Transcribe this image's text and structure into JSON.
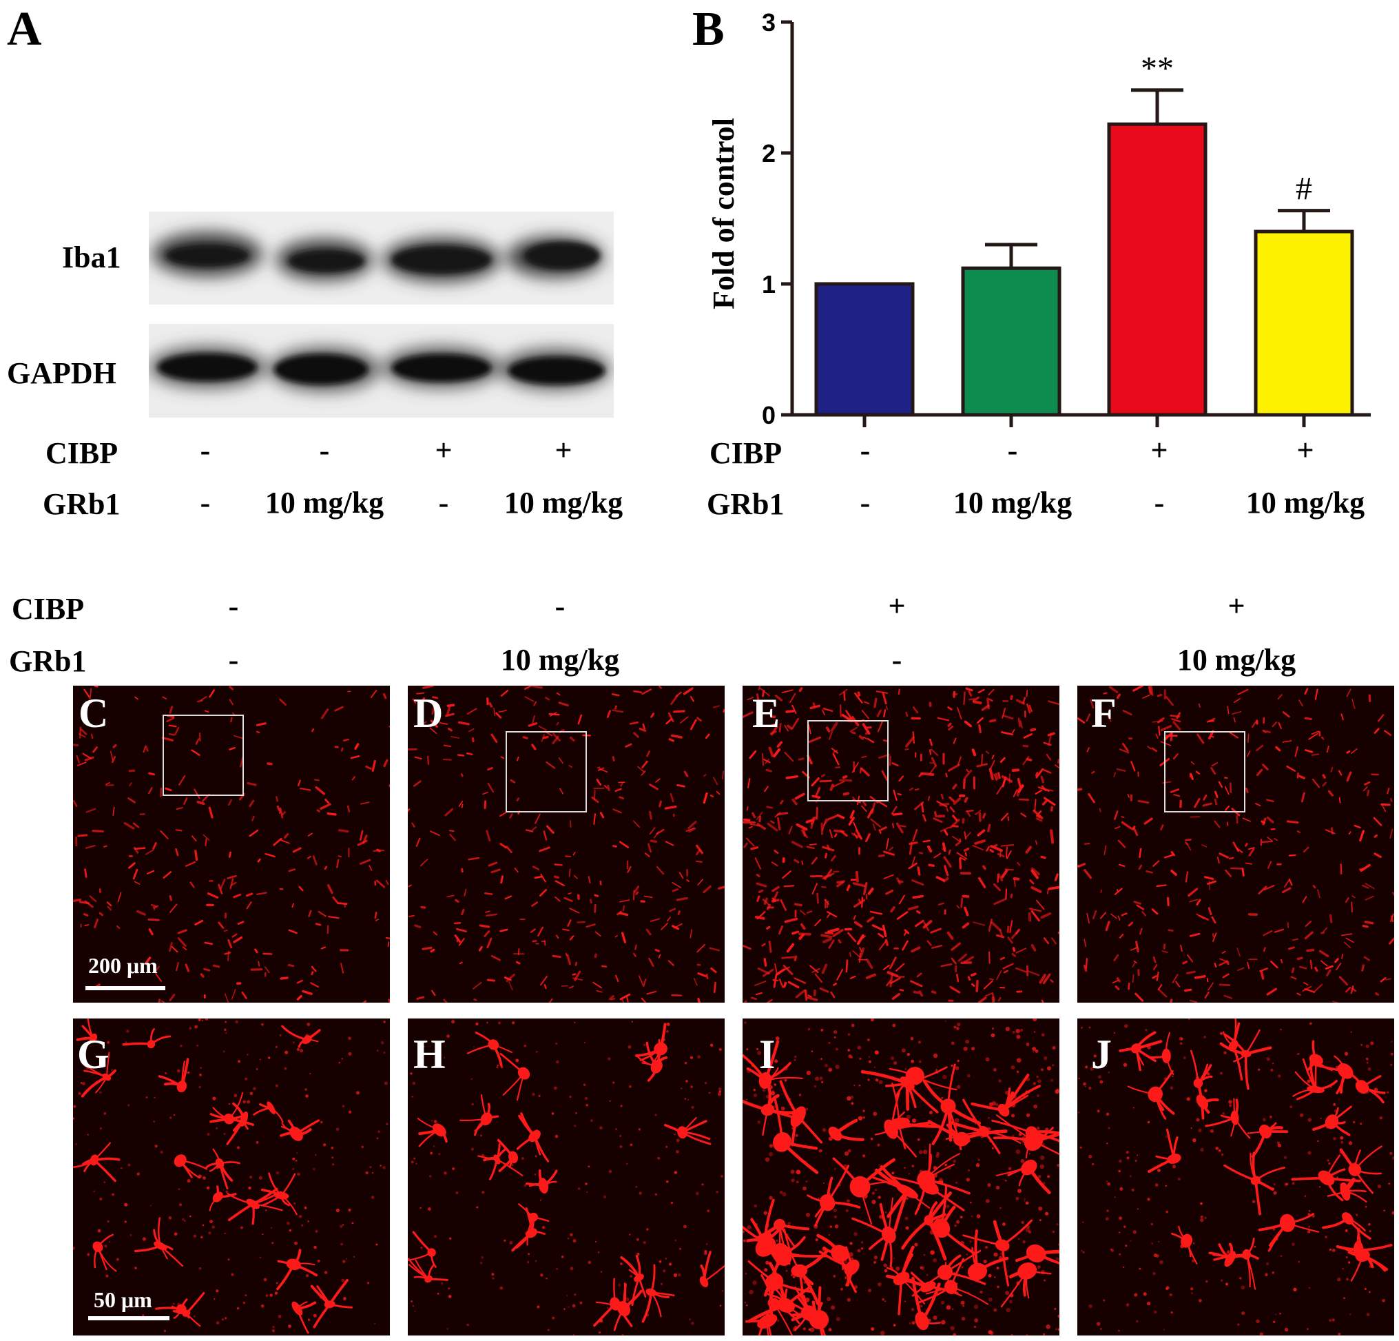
{
  "panel_a": {
    "letter": "A",
    "rows": [
      "Iba1",
      "GAPDH"
    ],
    "condition_labels": {
      "cibp": "CIBP",
      "grb1": "GRb1"
    }
  },
  "conditions": [
    {
      "cibp": "-",
      "grb1": "-"
    },
    {
      "cibp": "-",
      "grb1": "10 mg/kg"
    },
    {
      "cibp": "+",
      "grb1": "-"
    },
    {
      "cibp": "+",
      "grb1": "10 mg/kg"
    }
  ],
  "panel_b": {
    "letter": "B"
  },
  "chart_data": {
    "type": "bar",
    "title": "",
    "xlabel": "",
    "ylabel": "Fold of control",
    "ylim": [
      0,
      3
    ],
    "yticks": [
      0,
      1,
      2,
      3
    ],
    "categories": [
      "-/-",
      "-/10 mg/kg",
      "+/-",
      "+/10 mg/kg"
    ],
    "values": [
      1.0,
      1.12,
      2.22,
      1.4
    ],
    "errors": [
      0,
      0.18,
      0.26,
      0.16
    ],
    "colors": [
      "#1f2186",
      "#0e8c4f",
      "#e8091a",
      "#fff200"
    ],
    "annotations": [
      "",
      "",
      "**",
      "#"
    ],
    "edge_color": "#231815"
  },
  "micrographs": {
    "top_letters": [
      "C",
      "D",
      "E",
      "F"
    ],
    "bottom_letters": [
      "G",
      "H",
      "I",
      "J"
    ],
    "scalebar_top": "200 μm",
    "scalebar_bottom": "50 μm",
    "stain_color": "#ff1a1a"
  },
  "lower_labels": {
    "cibp": "CIBP",
    "grb1": "GRb1"
  }
}
